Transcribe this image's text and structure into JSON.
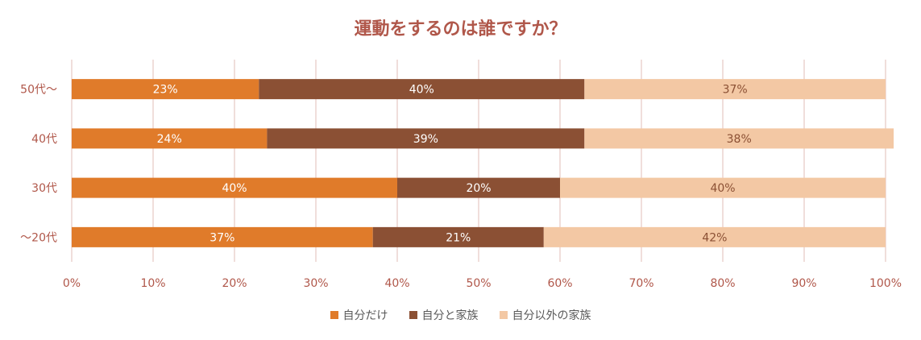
{
  "chart_data": {
    "type": "bar",
    "orientation": "horizontal",
    "stacked": "percent",
    "title": "運動をするのは誰ですか？",
    "categories": [
      "50代～",
      "40代",
      "30代",
      "～20代"
    ],
    "series": [
      {
        "name": "自分だけ",
        "values": [
          23,
          24,
          40,
          37
        ],
        "color": "#E07B2A",
        "label_color": "#ffffff"
      },
      {
        "name": "自分と家族",
        "values": [
          40,
          39,
          20,
          21
        ],
        "color": "#8B5034",
        "label_color": "#ffffff"
      },
      {
        "name": "自分以外の家族",
        "values": [
          37,
          38,
          40,
          42
        ],
        "color": "#F3C8A4",
        "label_color": "#8B5034"
      }
    ],
    "xlim": [
      0,
      100
    ],
    "xticks": [
      "0%",
      "10%",
      "20%",
      "30%",
      "40%",
      "50%",
      "60%",
      "70%",
      "80%",
      "90%",
      "100%"
    ],
    "grid": true,
    "legend": "bottom",
    "tick_label_color": "#b0574a",
    "grid_color": "#ecd3cf"
  }
}
